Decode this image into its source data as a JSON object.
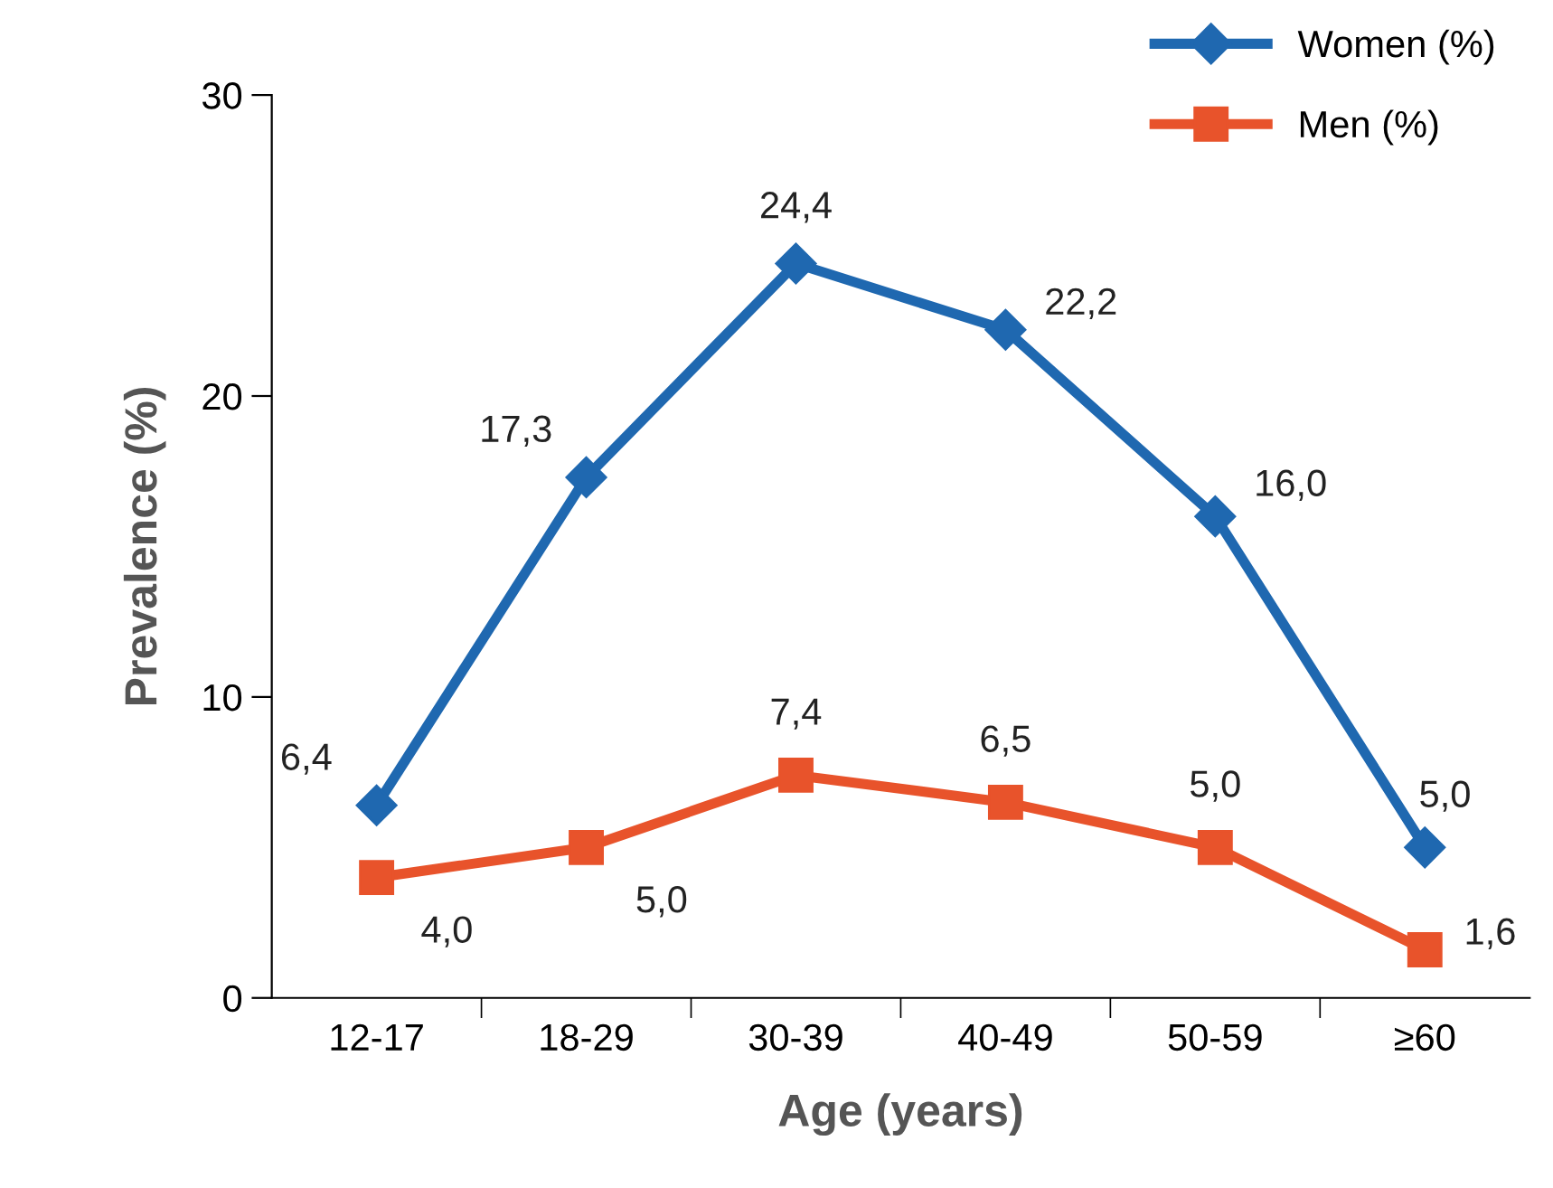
{
  "chart_data": {
    "type": "line",
    "xlabel": "Age (years)",
    "ylabel": "Prevalence (%)",
    "categories": [
      "12-17",
      "18-29",
      "30-39",
      "40-49",
      "50-59",
      "≥60"
    ],
    "ylim": [
      0,
      30
    ],
    "yticks": [
      0,
      10,
      20,
      30
    ],
    "grid": false,
    "legend": "top right",
    "line_style": "solid",
    "series": [
      {
        "name": "Women (%)",
        "color": "#1f68b0",
        "marker": "diamond",
        "values": [
          6.4,
          17.3,
          24.4,
          22.2,
          16.0,
          5.0
        ],
        "value_labels": [
          "6,4",
          "17,3",
          "24,4",
          "22,2",
          "16,0",
          "5,0"
        ]
      },
      {
        "name": "Men (%)",
        "color": "#e8532b",
        "marker": "square",
        "values": [
          4.0,
          5.0,
          7.4,
          6.5,
          5.0,
          1.6
        ],
        "value_labels": [
          "4,0",
          "5,0",
          "7,4",
          "6,5",
          "5,0",
          "1,6"
        ]
      }
    ]
  }
}
